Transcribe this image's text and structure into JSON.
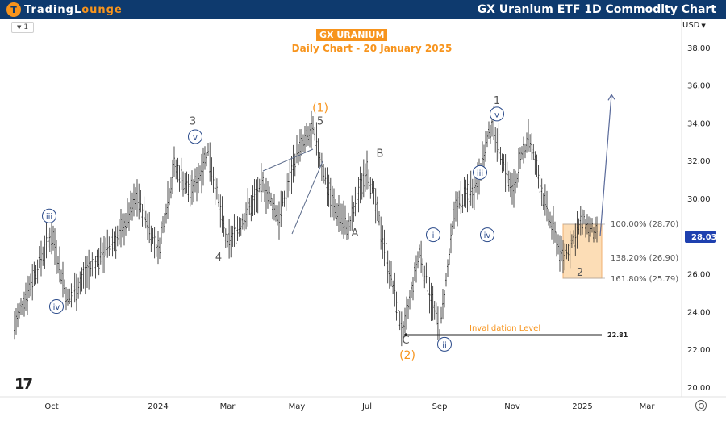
{
  "header": {
    "logo_icon": "tradinglounge-logo-icon",
    "logo_part1": "TradingL",
    "logo_part2": "ounge",
    "chart_title": "GX Uranium ETF 1D Commodity Chart"
  },
  "toolbar": {
    "interval": "1",
    "currency": "USD"
  },
  "annotation": {
    "ticker": "GX URANIUM",
    "subtitle": "Daily Chart - 20 January 2025",
    "invalidation_label": "Invalidation Level",
    "invalidation_value": "22.81",
    "current_price": "28.03",
    "fib_labels": [
      "100.00% (28.70)",
      "138.20% (26.90)",
      "161.80% (25.79)"
    ],
    "tv_logo": "17"
  },
  "colors": {
    "header_bg": "#0e3a6e",
    "accent": "#f7941d",
    "wave_circle": "#2a4a8a",
    "price_tag": "#1e40af",
    "candles": "#222222"
  },
  "chart_data": {
    "type": "line",
    "title": "GX URANIUM",
    "subtitle": "Daily Chart - 20 January 2025",
    "xlabel": "",
    "ylabel": "",
    "currency": "USD",
    "x_ticks": [
      "Oct",
      "2024",
      "Mar",
      "May",
      "Jul",
      "Sep",
      "Nov",
      "2025",
      "Mar"
    ],
    "y_ticks": [
      20,
      22,
      24,
      26,
      28,
      30,
      32,
      34,
      36,
      38
    ],
    "ylim": [
      19.5,
      39.1
    ],
    "grid": false,
    "last_price": 28.03,
    "invalidation_level": 22.81,
    "fibonacci_levels": [
      {
        "ratio": "100.00%",
        "price": 28.7
      },
      {
        "ratio": "138.20%",
        "price": 26.9
      },
      {
        "ratio": "161.80%",
        "price": 25.79
      }
    ],
    "price_path": [
      {
        "x": "Sep 2023",
        "y": 23.3
      },
      {
        "x": "Sep 2023",
        "y": 25.5
      },
      {
        "x": "Oct 2023",
        "y": 28.2
      },
      {
        "x": "Oct 2023",
        "y": 24.6
      },
      {
        "x": "Nov 2023",
        "y": 26.1
      },
      {
        "x": "Dec 2023",
        "y": 28.2
      },
      {
        "x": "Dec 2023",
        "y": 30.1
      },
      {
        "x": "Jan 2024",
        "y": 27.2
      },
      {
        "x": "Jan 2024",
        "y": 31.7
      },
      {
        "x": "Feb 2024",
        "y": 30.3
      },
      {
        "x": "Feb 2024",
        "y": 32.5
      },
      {
        "x": "Mar 2024",
        "y": 27.5
      },
      {
        "x": "Apr 2024",
        "y": 30.7
      },
      {
        "x": "Apr 2024",
        "y": 29.0
      },
      {
        "x": "May 2024",
        "y": 32.4
      },
      {
        "x": "May 2024",
        "y": 33.6
      },
      {
        "x": "Jun 2024",
        "y": 29.7
      },
      {
        "x": "Jun 2024",
        "y": 28.4
      },
      {
        "x": "Jul 2024",
        "y": 31.7
      },
      {
        "x": "Aug 2024",
        "y": 22.8
      },
      {
        "x": "Aug 2024",
        "y": 27.2
      },
      {
        "x": "Sep 2024",
        "y": 22.9
      },
      {
        "x": "Sep 2024",
        "y": 29.6
      },
      {
        "x": "Oct 2024",
        "y": 30.7
      },
      {
        "x": "Oct 2024",
        "y": 34.0
      },
      {
        "x": "Nov 2024",
        "y": 30.3
      },
      {
        "x": "Nov 2024",
        "y": 33.4
      },
      {
        "x": "Dec 2024",
        "y": 29.3
      },
      {
        "x": "Dec 2024",
        "y": 26.8
      },
      {
        "x": "Jan 2025",
        "y": 28.8
      },
      {
        "x": "Jan 2025",
        "y": 28.0
      }
    ],
    "projection": [
      {
        "x": "Jan 2025",
        "y": 28.0
      },
      {
        "x": "Feb 2025",
        "y": 35.5
      }
    ],
    "wave_labels": [
      {
        "text": "iii",
        "circled": true,
        "x": "Oct 2023",
        "y": 28.9
      },
      {
        "text": "iv",
        "circled": true,
        "x": "Oct 2023",
        "y": 24.1
      },
      {
        "text": "3",
        "circled": false,
        "x": "Feb 2024",
        "y": 33.9
      },
      {
        "text": "v",
        "circled": true,
        "x": "Feb 2024",
        "y": 33.1
      },
      {
        "text": "4",
        "circled": false,
        "x": "Mar 2024",
        "y": 26.7
      },
      {
        "text": "(1)",
        "circled": false,
        "x": "May 2024",
        "y": 34.6
      },
      {
        "text": "5",
        "circled": false,
        "x": "May 2024",
        "y": 33.9
      },
      {
        "text": "A",
        "circled": false,
        "x": "Jun 2024",
        "y": 28.0
      },
      {
        "text": "B",
        "circled": false,
        "x": "Jul 2024",
        "y": 32.2
      },
      {
        "text": "C",
        "circled": false,
        "x": "Aug 2024",
        "y": 22.3
      },
      {
        "text": "(2)",
        "circled": false,
        "x": "Aug 2024",
        "y": 21.5
      },
      {
        "text": "i",
        "circled": true,
        "x": "Sep 2024",
        "y": 27.9
      },
      {
        "text": "ii",
        "circled": true,
        "x": "Sep 2024",
        "y": 22.1
      },
      {
        "text": "iii",
        "circled": true,
        "x": "Oct 2024",
        "y": 31.2
      },
      {
        "text": "iv",
        "circled": true,
        "x": "Oct 2024",
        "y": 27.9
      },
      {
        "text": "1",
        "circled": false,
        "x": "Oct 2024",
        "y": 35.0
      },
      {
        "text": "v",
        "circled": true,
        "x": "Oct 2024",
        "y": 34.3
      },
      {
        "text": "2",
        "circled": false,
        "x": "Jan 2025",
        "y": 25.9
      }
    ]
  }
}
